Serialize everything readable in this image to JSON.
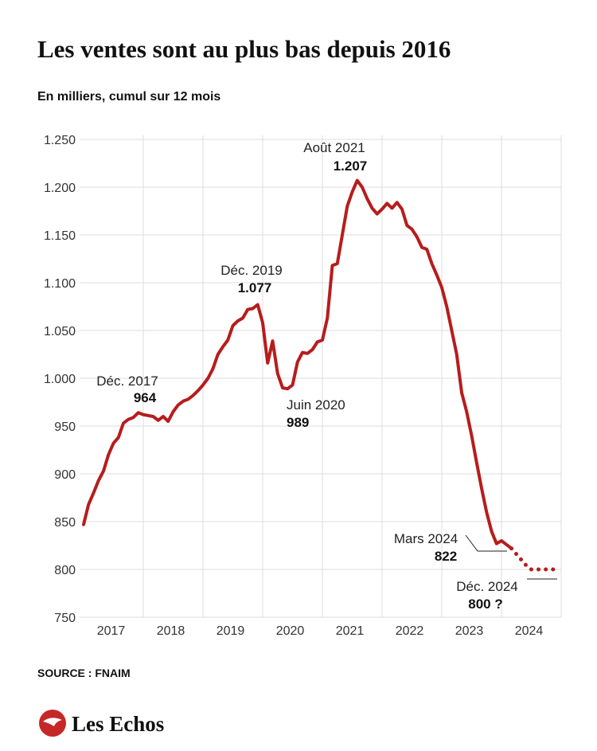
{
  "chart_data": {
    "type": "line",
    "title": "Les ventes sont au plus bas depuis 2016",
    "subtitle": "En milliers, cumul sur 12 mois",
    "source": "SOURCE :  FNAIM",
    "brand": "Les Echos",
    "categories": [
      "2017",
      null,
      null,
      null,
      null,
      null,
      null,
      null,
      null,
      null,
      null,
      null,
      "2018",
      null,
      null,
      null,
      null,
      null,
      null,
      null,
      null,
      null,
      null,
      null,
      "2019",
      null,
      null,
      null,
      null,
      null,
      null,
      null,
      null,
      null,
      null,
      null,
      "2020",
      null,
      null,
      null,
      null,
      null,
      null,
      null,
      null,
      null,
      null,
      null,
      "2021",
      null,
      null,
      null,
      null,
      null,
      null,
      null,
      null,
      null,
      null,
      null,
      "2022",
      null,
      null,
      null,
      null,
      null,
      null,
      null,
      null,
      null,
      null,
      null,
      "2023",
      null,
      null,
      null,
      null,
      null,
      null,
      null,
      null,
      null,
      null,
      null,
      "2024",
      null,
      null,
      null,
      null,
      null,
      null,
      null,
      null,
      null,
      null,
      null
    ],
    "series": [
      {
        "color": "#b71c1c",
        "style": "solid",
        "values": [
          847,
          868,
          880,
          893,
          903,
          920,
          932,
          938,
          953,
          957,
          959,
          964,
          962,
          961,
          960,
          956,
          960,
          955,
          965,
          972,
          976,
          978,
          982,
          987,
          993,
          1000,
          1010,
          1025,
          1033,
          1040,
          1055,
          1060,
          1063,
          1072,
          1073,
          1077,
          1058,
          1016,
          1039,
          1005,
          990,
          989,
          993,
          1017,
          1027,
          1026,
          1030,
          1038,
          1040,
          1063,
          1118,
          1120,
          1150,
          1180,
          1195,
          1207,
          1200,
          1188,
          1178,
          1172,
          1177,
          1183,
          1178,
          1184,
          1177,
          1160,
          1156,
          1148,
          1137,
          1135,
          1120,
          1108,
          1095,
          1075,
          1050,
          1025,
          985,
          965,
          940,
          912,
          885,
          860,
          840,
          827,
          830,
          826,
          822,
          null,
          null,
          null,
          null,
          null,
          null,
          null,
          null,
          null
        ],
        "point_labels": [
          null,
          null,
          null,
          null,
          null,
          null,
          null,
          null,
          null,
          null,
          null,
          "Déc. 2017",
          null,
          null,
          null,
          null,
          null,
          null,
          null,
          null,
          null,
          null,
          null,
          null,
          null,
          null,
          null,
          null,
          null,
          null,
          null,
          null,
          null,
          null,
          null,
          "Déc. 2019",
          null,
          null,
          null,
          null,
          null,
          "Juin 2020",
          null,
          null,
          null,
          null,
          null,
          null,
          null,
          null,
          null,
          null,
          null,
          null,
          null,
          "Août 2021",
          null,
          null,
          null,
          null,
          null,
          null,
          null,
          null,
          null,
          null,
          null,
          null,
          null,
          null,
          null,
          null,
          null,
          null,
          null,
          null,
          null,
          null,
          null,
          null,
          null,
          null,
          null,
          null,
          null,
          null,
          "Mars 2024",
          null,
          null,
          null,
          null,
          null,
          null,
          null,
          null,
          null
        ],
        "value_labels": [
          null,
          null,
          null,
          null,
          null,
          null,
          null,
          null,
          null,
          null,
          null,
          "964",
          null,
          null,
          null,
          null,
          null,
          null,
          null,
          null,
          null,
          null,
          null,
          null,
          null,
          null,
          null,
          null,
          null,
          null,
          null,
          null,
          null,
          null,
          null,
          "1.077",
          null,
          null,
          null,
          null,
          null,
          "989",
          null,
          null,
          null,
          null,
          null,
          null,
          null,
          null,
          null,
          null,
          null,
          null,
          null,
          "1.207",
          null,
          null,
          null,
          null,
          null,
          null,
          null,
          null,
          null,
          null,
          null,
          null,
          null,
          null,
          null,
          null,
          null,
          null,
          null,
          null,
          null,
          null,
          null,
          null,
          null,
          null,
          null,
          null,
          null,
          null,
          "822",
          null,
          null,
          null,
          null,
          null,
          null,
          null,
          null,
          null
        ]
      },
      {
        "color": "#b71c1c",
        "style": "dotted",
        "values": [
          null,
          null,
          null,
          null,
          null,
          null,
          null,
          null,
          null,
          null,
          null,
          null,
          null,
          null,
          null,
          null,
          null,
          null,
          null,
          null,
          null,
          null,
          null,
          null,
          null,
          null,
          null,
          null,
          null,
          null,
          null,
          null,
          null,
          null,
          null,
          null,
          null,
          null,
          null,
          null,
          null,
          null,
          null,
          null,
          null,
          null,
          null,
          null,
          null,
          null,
          null,
          null,
          null,
          null,
          null,
          null,
          null,
          null,
          null,
          null,
          null,
          null,
          null,
          null,
          null,
          null,
          null,
          null,
          null,
          null,
          null,
          null,
          null,
          null,
          null,
          null,
          null,
          null,
          null,
          null,
          null,
          null,
          null,
          null,
          null,
          null,
          822,
          816,
          810,
          804,
          800,
          800,
          800,
          800,
          800,
          800
        ],
        "point_labels": [
          null,
          null,
          null,
          null,
          null,
          null,
          null,
          null,
          null,
          null,
          null,
          null,
          null,
          null,
          null,
          null,
          null,
          null,
          null,
          null,
          null,
          null,
          null,
          null,
          null,
          null,
          null,
          null,
          null,
          null,
          null,
          null,
          null,
          null,
          null,
          null,
          null,
          null,
          null,
          null,
          null,
          null,
          null,
          null,
          null,
          null,
          null,
          null,
          null,
          null,
          null,
          null,
          null,
          null,
          null,
          null,
          null,
          null,
          null,
          null,
          null,
          null,
          null,
          null,
          null,
          null,
          null,
          null,
          null,
          null,
          null,
          null,
          null,
          null,
          null,
          null,
          null,
          null,
          null,
          null,
          null,
          null,
          null,
          null,
          null,
          null,
          null,
          null,
          null,
          null,
          null,
          null,
          null,
          null,
          null,
          "Déc. 2024"
        ],
        "value_labels": [
          null,
          null,
          null,
          null,
          null,
          null,
          null,
          null,
          null,
          null,
          null,
          null,
          null,
          null,
          null,
          null,
          null,
          null,
          null,
          null,
          null,
          null,
          null,
          null,
          null,
          null,
          null,
          null,
          null,
          null,
          null,
          null,
          null,
          null,
          null,
          null,
          null,
          null,
          null,
          null,
          null,
          null,
          null,
          null,
          null,
          null,
          null,
          null,
          null,
          null,
          null,
          null,
          null,
          null,
          null,
          null,
          null,
          null,
          null,
          null,
          null,
          null,
          null,
          null,
          null,
          null,
          null,
          null,
          null,
          null,
          null,
          null,
          null,
          null,
          null,
          null,
          null,
          null,
          null,
          null,
          null,
          null,
          null,
          null,
          null,
          null,
          null,
          null,
          null,
          null,
          null,
          null,
          null,
          null,
          null,
          "800 ?"
        ]
      }
    ],
    "ylim": [
      750,
      1250
    ],
    "yticks": [
      750,
      800,
      850,
      900,
      950,
      {
        "value": 1000,
        "label": "1.000"
      },
      {
        "value": 1050,
        "label": "1.050"
      },
      {
        "value": 1100,
        "label": "1.100"
      },
      {
        "value": 1150,
        "label": "1.150"
      },
      {
        "value": 1200,
        "label": "1.200"
      },
      {
        "value": 1250,
        "label": "1.250"
      }
    ],
    "grid": true
  }
}
